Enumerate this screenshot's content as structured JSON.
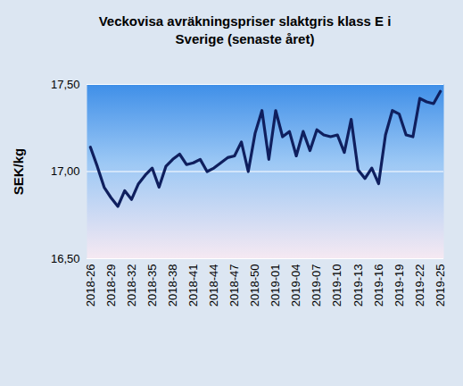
{
  "chart_data": {
    "type": "line",
    "title": "Veckovisa avräkningspriser slaktgris klass E i Sverige (senaste året)",
    "y_label": "SEK/kg",
    "categories": [
      "2018-26",
      null,
      null,
      "2018-29",
      null,
      null,
      "2018-32",
      null,
      null,
      "2018-35",
      null,
      null,
      "2018-38",
      null,
      null,
      "2018-41",
      null,
      null,
      "2018-44",
      null,
      null,
      "2018-47",
      null,
      null,
      "2018-50",
      null,
      null,
      "2019-01",
      null,
      null,
      "2019-04",
      null,
      null,
      "2019-07",
      null,
      null,
      "2019-10",
      null,
      null,
      "2019-13",
      null,
      null,
      "2019-16",
      null,
      null,
      "2019-19",
      null,
      null,
      "2019-22",
      null,
      null,
      "2019-25"
    ],
    "values": [
      17.14,
      17.03,
      16.91,
      16.85,
      16.8,
      16.89,
      16.84,
      16.93,
      16.98,
      17.02,
      16.91,
      17.03,
      17.07,
      17.1,
      17.04,
      17.05,
      17.07,
      17.0,
      17.02,
      17.05,
      17.08,
      17.09,
      17.17,
      17.0,
      17.22,
      17.35,
      17.07,
      17.35,
      17.2,
      17.23,
      17.09,
      17.23,
      17.12,
      17.24,
      17.21,
      17.2,
      17.21,
      17.11,
      17.3,
      17.01,
      16.96,
      17.02,
      16.93,
      17.21,
      17.35,
      17.33,
      17.21,
      17.2,
      17.42,
      17.4,
      17.39,
      17.46
    ],
    "color": "#0f1f5e",
    "ylim": [
      16.5,
      17.5
    ],
    "yticks": [
      {
        "value": 16.5,
        "label": "16,50"
      },
      {
        "value": 17.0,
        "label": "17,00"
      },
      {
        "value": 17.5,
        "label": "17,50"
      }
    ],
    "grid": true
  }
}
